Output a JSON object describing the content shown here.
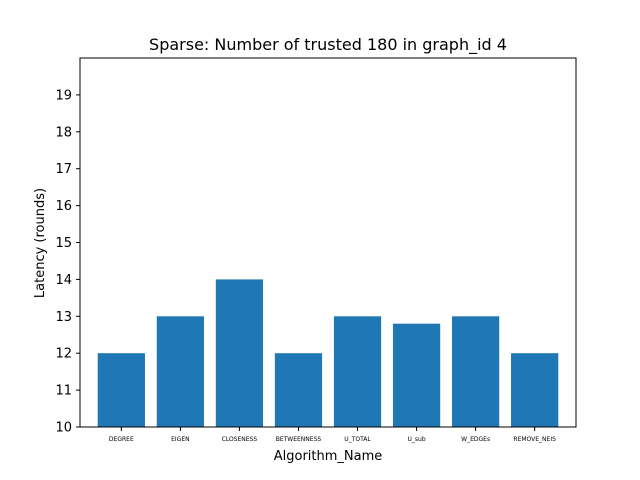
{
  "chart_data": {
    "type": "bar",
    "title": "Sparse: Number of trusted 180 in graph_id 4",
    "xlabel": "Algorithm_Name",
    "ylabel": "Latency (rounds)",
    "categories": [
      "DEGREE",
      "EIGEN",
      "CLOSENESS",
      "BETWEENNESS",
      "U_TOTAL",
      "U_sub",
      "W_EDGEs",
      "REMOVE_NEIS"
    ],
    "values": [
      12,
      13,
      14,
      12,
      13,
      12.8,
      13,
      12
    ],
    "ylim": [
      10,
      20
    ],
    "yticks": [
      10,
      11,
      12,
      13,
      14,
      15,
      16,
      17,
      18,
      19
    ],
    "bar_color": "#1f77b4",
    "grid": false,
    "legend": false
  }
}
